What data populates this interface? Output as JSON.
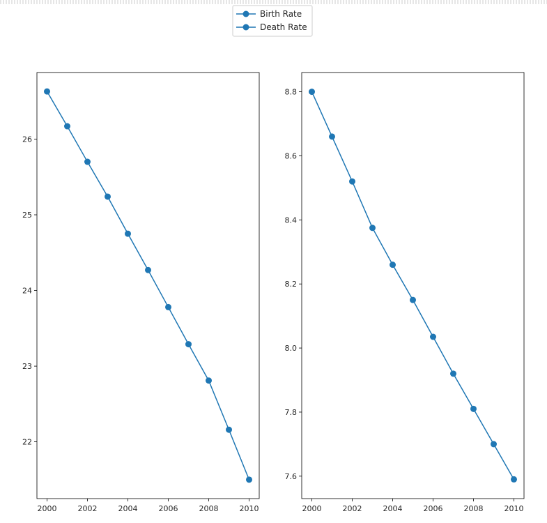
{
  "legend": {
    "entries": [
      "Birth Rate",
      "Death Rate"
    ]
  },
  "colors": {
    "series": "#1f77b4",
    "frame": "#000000",
    "text": "#262626"
  },
  "chart_data": [
    {
      "type": "line",
      "series_name": "Birth Rate",
      "x": [
        2000,
        2001,
        2002,
        2003,
        2004,
        2005,
        2006,
        2007,
        2008,
        2009,
        2010
      ],
      "values": [
        26.63,
        26.17,
        25.7,
        25.24,
        24.75,
        24.27,
        23.78,
        23.29,
        22.81,
        22.16,
        21.5
      ],
      "xlim": [
        1999.5,
        2010.5
      ],
      "ylim": [
        21.25,
        26.88
      ],
      "xticks": [
        2000,
        2002,
        2004,
        2006,
        2008,
        2010
      ],
      "xtick_labels": [
        "2000",
        "2002",
        "2004",
        "2006",
        "2008",
        "2010"
      ],
      "yticks": [
        22,
        23,
        24,
        25,
        26
      ],
      "ytick_labels": [
        "22",
        "23",
        "24",
        "25",
        "26"
      ],
      "grid": false,
      "marker": "circle"
    },
    {
      "type": "line",
      "series_name": "Death Rate",
      "x": [
        2000,
        2001,
        2002,
        2003,
        2004,
        2005,
        2006,
        2007,
        2008,
        2009,
        2010
      ],
      "values": [
        8.8,
        8.66,
        8.52,
        8.375,
        8.26,
        8.15,
        8.035,
        7.92,
        7.81,
        7.7,
        7.59
      ],
      "xlim": [
        1999.5,
        2010.5
      ],
      "ylim": [
        7.53,
        8.86
      ],
      "xticks": [
        2000,
        2002,
        2004,
        2006,
        2008,
        2010
      ],
      "xtick_labels": [
        "2000",
        "2002",
        "2004",
        "2006",
        "2008",
        "2010"
      ],
      "yticks": [
        7.6,
        7.8,
        8.0,
        8.2,
        8.4,
        8.6,
        8.8
      ],
      "ytick_labels": [
        "7.6",
        "7.8",
        "8.0",
        "8.2",
        "8.4",
        "8.6",
        "8.8"
      ],
      "grid": false,
      "marker": "circle"
    }
  ],
  "legend_placement": "top-center"
}
